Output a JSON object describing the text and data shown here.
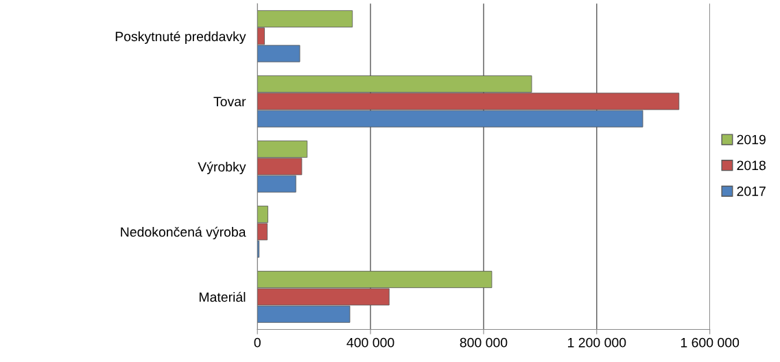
{
  "chart_data": {
    "type": "bar",
    "orientation": "horizontal",
    "categories": [
      "Poskytnuté preddavky",
      "Tovar",
      "Výrobky",
      "Nedokončená výroba",
      "Materiál"
    ],
    "series": [
      {
        "name": "2019",
        "color": "#9bbb59",
        "values": [
          336000,
          970000,
          176000,
          37000,
          829000
        ]
      },
      {
        "name": "2018",
        "color": "#c0504d",
        "values": [
          25000,
          1491000,
          157000,
          35000,
          466000
        ]
      },
      {
        "name": "2017",
        "color": "#4f81bd",
        "values": [
          150000,
          1363000,
          136000,
          6000,
          327000
        ]
      }
    ],
    "xlim": [
      0,
      1600000
    ],
    "xticks": [
      {
        "value": 0,
        "label": "0"
      },
      {
        "value": 400000,
        "label": "400 000"
      },
      {
        "value": 800000,
        "label": "800 000"
      },
      {
        "value": 1200000,
        "label": "1 200 000"
      },
      {
        "value": 1600000,
        "label": "1 600 000"
      }
    ],
    "grid": "x",
    "legend": "right"
  }
}
